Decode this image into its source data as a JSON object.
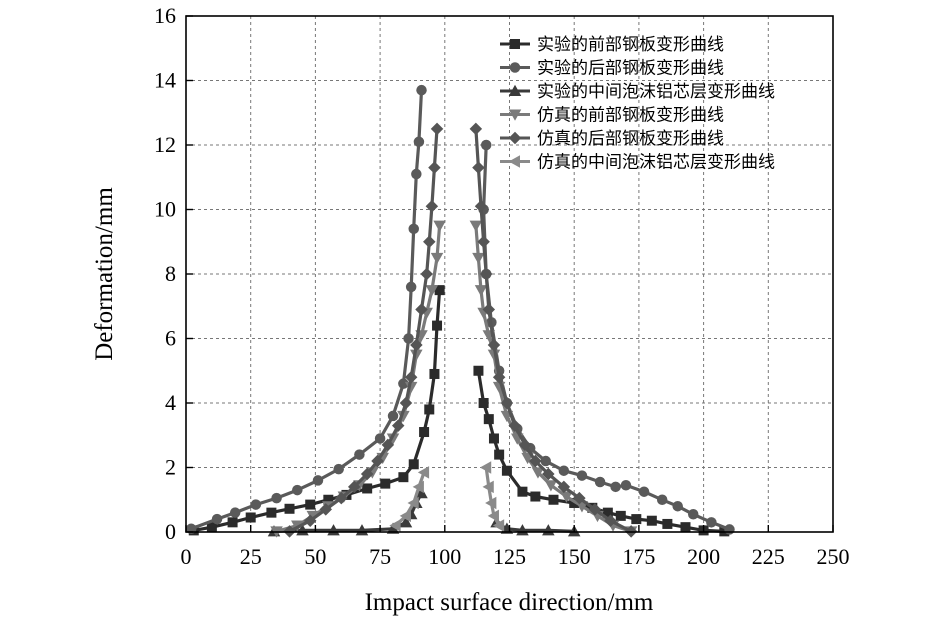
{
  "chart_data": {
    "type": "line",
    "xlabel": "Impact surface direction/mm",
    "ylabel": "Deformation/mm",
    "xlim": [
      0,
      250
    ],
    "ylim": [
      0,
      16
    ],
    "xticks": [
      0,
      25,
      50,
      75,
      100,
      125,
      150,
      175,
      200,
      225,
      250
    ],
    "yticks": [
      0,
      2,
      4,
      6,
      8,
      10,
      12,
      14,
      16
    ],
    "grid": true,
    "grid_style": "dashed",
    "legend_position": "top-right",
    "series": [
      {
        "name": "实验的前部钢板变形曲线",
        "color": "#2b2b2b",
        "marker": "square",
        "segments": [
          [
            [
              3,
              0.05
            ],
            [
              10,
              0.15
            ],
            [
              18,
              0.3
            ],
            [
              25,
              0.45
            ],
            [
              33,
              0.6
            ],
            [
              40,
              0.72
            ],
            [
              48,
              0.85
            ],
            [
              55,
              1.0
            ],
            [
              62,
              1.15
            ],
            [
              70,
              1.35
            ],
            [
              77,
              1.5
            ],
            [
              84,
              1.7
            ],
            [
              88,
              2.1
            ],
            [
              92,
              3.1
            ],
            [
              94,
              3.8
            ],
            [
              96,
              4.9
            ],
            [
              97,
              6.4
            ],
            [
              98,
              7.5
            ]
          ],
          [
            [
              113,
              5.0
            ],
            [
              115,
              4.0
            ],
            [
              117,
              3.5
            ],
            [
              119,
              2.9
            ],
            [
              121,
              2.4
            ],
            [
              124,
              1.9
            ],
            [
              130,
              1.25
            ],
            [
              135,
              1.1
            ],
            [
              142,
              1.0
            ],
            [
              150,
              0.9
            ],
            [
              157,
              0.75
            ],
            [
              163,
              0.6
            ],
            [
              168,
              0.5
            ],
            [
              174,
              0.4
            ],
            [
              180,
              0.35
            ],
            [
              186,
              0.25
            ],
            [
              193,
              0.15
            ],
            [
              200,
              0.05
            ],
            [
              208,
              0.02
            ]
          ]
        ]
      },
      {
        "name": "实验的后部钢板变形曲线",
        "color": "#5a5a5a",
        "marker": "circle",
        "segments": [
          [
            [
              2,
              0.1
            ],
            [
              12,
              0.4
            ],
            [
              19,
              0.6
            ],
            [
              27,
              0.85
            ],
            [
              35,
              1.05
            ],
            [
              43,
              1.3
            ],
            [
              51,
              1.6
            ],
            [
              59,
              1.95
            ],
            [
              67,
              2.4
            ],
            [
              75,
              2.9
            ],
            [
              80,
              3.6
            ],
            [
              84,
              4.6
            ],
            [
              86,
              6.0
            ],
            [
              87,
              7.6
            ],
            [
              88,
              9.4
            ],
            [
              89,
              11.1
            ],
            [
              90,
              12.1
            ],
            [
              91,
              13.7
            ]
          ],
          [
            [
              116,
              12.0
            ],
            [
              115,
              10.0
            ],
            [
              116,
              8.0
            ],
            [
              118,
              6.5
            ],
            [
              121,
              5.0
            ],
            [
              124,
              4.0
            ],
            [
              128,
              3.2
            ],
            [
              133,
              2.6
            ],
            [
              139,
              2.2
            ],
            [
              146,
              1.9
            ],
            [
              153,
              1.75
            ],
            [
              160,
              1.55
            ],
            [
              166,
              1.4
            ],
            [
              170,
              1.45
            ],
            [
              177,
              1.25
            ],
            [
              184,
              1.0
            ],
            [
              190,
              0.8
            ],
            [
              196,
              0.55
            ],
            [
              203,
              0.3
            ],
            [
              210,
              0.08
            ]
          ]
        ]
      },
      {
        "name": "实验的中间泡沫铝芯层变形曲线",
        "color": "#3a3a3a",
        "marker": "triangle-up",
        "segments": [
          [
            [
              34,
              0.02
            ],
            [
              45,
              0.05
            ],
            [
              57,
              0.05
            ],
            [
              68,
              0.05
            ],
            [
              80,
              0.1
            ],
            [
              85,
              0.3
            ],
            [
              87,
              0.55
            ],
            [
              89,
              0.9
            ],
            [
              91,
              1.2
            ]
          ],
          [
            [
              120,
              0.3
            ],
            [
              124,
              0.1
            ],
            [
              130,
              0.05
            ],
            [
              140,
              0.05
            ],
            [
              150,
              0.02
            ]
          ]
        ]
      },
      {
        "name": "仿真的前部钢板变形曲线",
        "color": "#7a7a7a",
        "marker": "triangle-down",
        "segments": [
          [
            [
              35,
              0.02
            ],
            [
              43,
              0.2
            ],
            [
              49,
              0.5
            ],
            [
              55,
              0.8
            ],
            [
              61,
              1.1
            ],
            [
              67,
              1.45
            ],
            [
              72,
              1.85
            ],
            [
              76,
              2.3
            ],
            [
              80,
              2.9
            ],
            [
              84,
              3.6
            ],
            [
              87,
              4.5
            ],
            [
              89,
              5.5
            ],
            [
              91,
              6.1
            ],
            [
              93,
              6.8
            ],
            [
              95,
              7.5
            ],
            [
              97,
              8.5
            ],
            [
              98,
              9.5
            ]
          ],
          [
            [
              112,
              9.5
            ],
            [
              113,
              8.5
            ],
            [
              114,
              7.5
            ],
            [
              115,
              6.8
            ],
            [
              117,
              6.1
            ],
            [
              119,
              5.5
            ],
            [
              121,
              4.5
            ],
            [
              124,
              3.6
            ],
            [
              128,
              2.9
            ],
            [
              132,
              2.3
            ],
            [
              136,
              1.85
            ],
            [
              141,
              1.45
            ],
            [
              147,
              1.1
            ],
            [
              153,
              0.8
            ],
            [
              159,
              0.5
            ],
            [
              165,
              0.2
            ],
            [
              172,
              0.02
            ]
          ]
        ]
      },
      {
        "name": "仿真的后部钢板变形曲线",
        "color": "#555555",
        "marker": "diamond",
        "segments": [
          [
            [
              40,
              0.02
            ],
            [
              48,
              0.35
            ],
            [
              54,
              0.7
            ],
            [
              60,
              1.05
            ],
            [
              65,
              1.4
            ],
            [
              70,
              1.8
            ],
            [
              74,
              2.2
            ],
            [
              78,
              2.7
            ],
            [
              82,
              3.3
            ],
            [
              85,
              4.0
            ],
            [
              87,
              4.8
            ],
            [
              89,
              5.8
            ],
            [
              91,
              6.9
            ],
            [
              93,
              8.0
            ],
            [
              94,
              9.0
            ],
            [
              95,
              10.1
            ],
            [
              96,
              11.3
            ],
            [
              97,
              12.5
            ]
          ],
          [
            [
              112,
              12.5
            ],
            [
              113,
              11.3
            ],
            [
              114,
              10.1
            ],
            [
              115,
              9.0
            ],
            [
              116,
              8.0
            ],
            [
              117,
              6.9
            ],
            [
              119,
              5.8
            ],
            [
              121,
              4.8
            ],
            [
              124,
              4.0
            ],
            [
              127,
              3.3
            ],
            [
              131,
              2.7
            ],
            [
              135,
              2.2
            ],
            [
              140,
              1.8
            ],
            [
              146,
              1.4
            ],
            [
              152,
              1.05
            ],
            [
              158,
              0.7
            ],
            [
              164,
              0.35
            ],
            [
              172,
              0.02
            ]
          ]
        ]
      },
      {
        "name": "仿真的中间泡沫铝芯层变形曲线",
        "color": "#8a8a8a",
        "marker": "triangle-left",
        "segments": [
          [
            [
              81,
              0.2
            ],
            [
              85,
              0.5
            ],
            [
              88,
              0.9
            ],
            [
              90,
              1.4
            ],
            [
              92,
              1.85
            ]
          ],
          [
            [
              116,
              2.0
            ],
            [
              117,
              1.4
            ],
            [
              118,
              0.9
            ],
            [
              119,
              0.5
            ],
            [
              121,
              0.2
            ]
          ]
        ]
      }
    ]
  }
}
